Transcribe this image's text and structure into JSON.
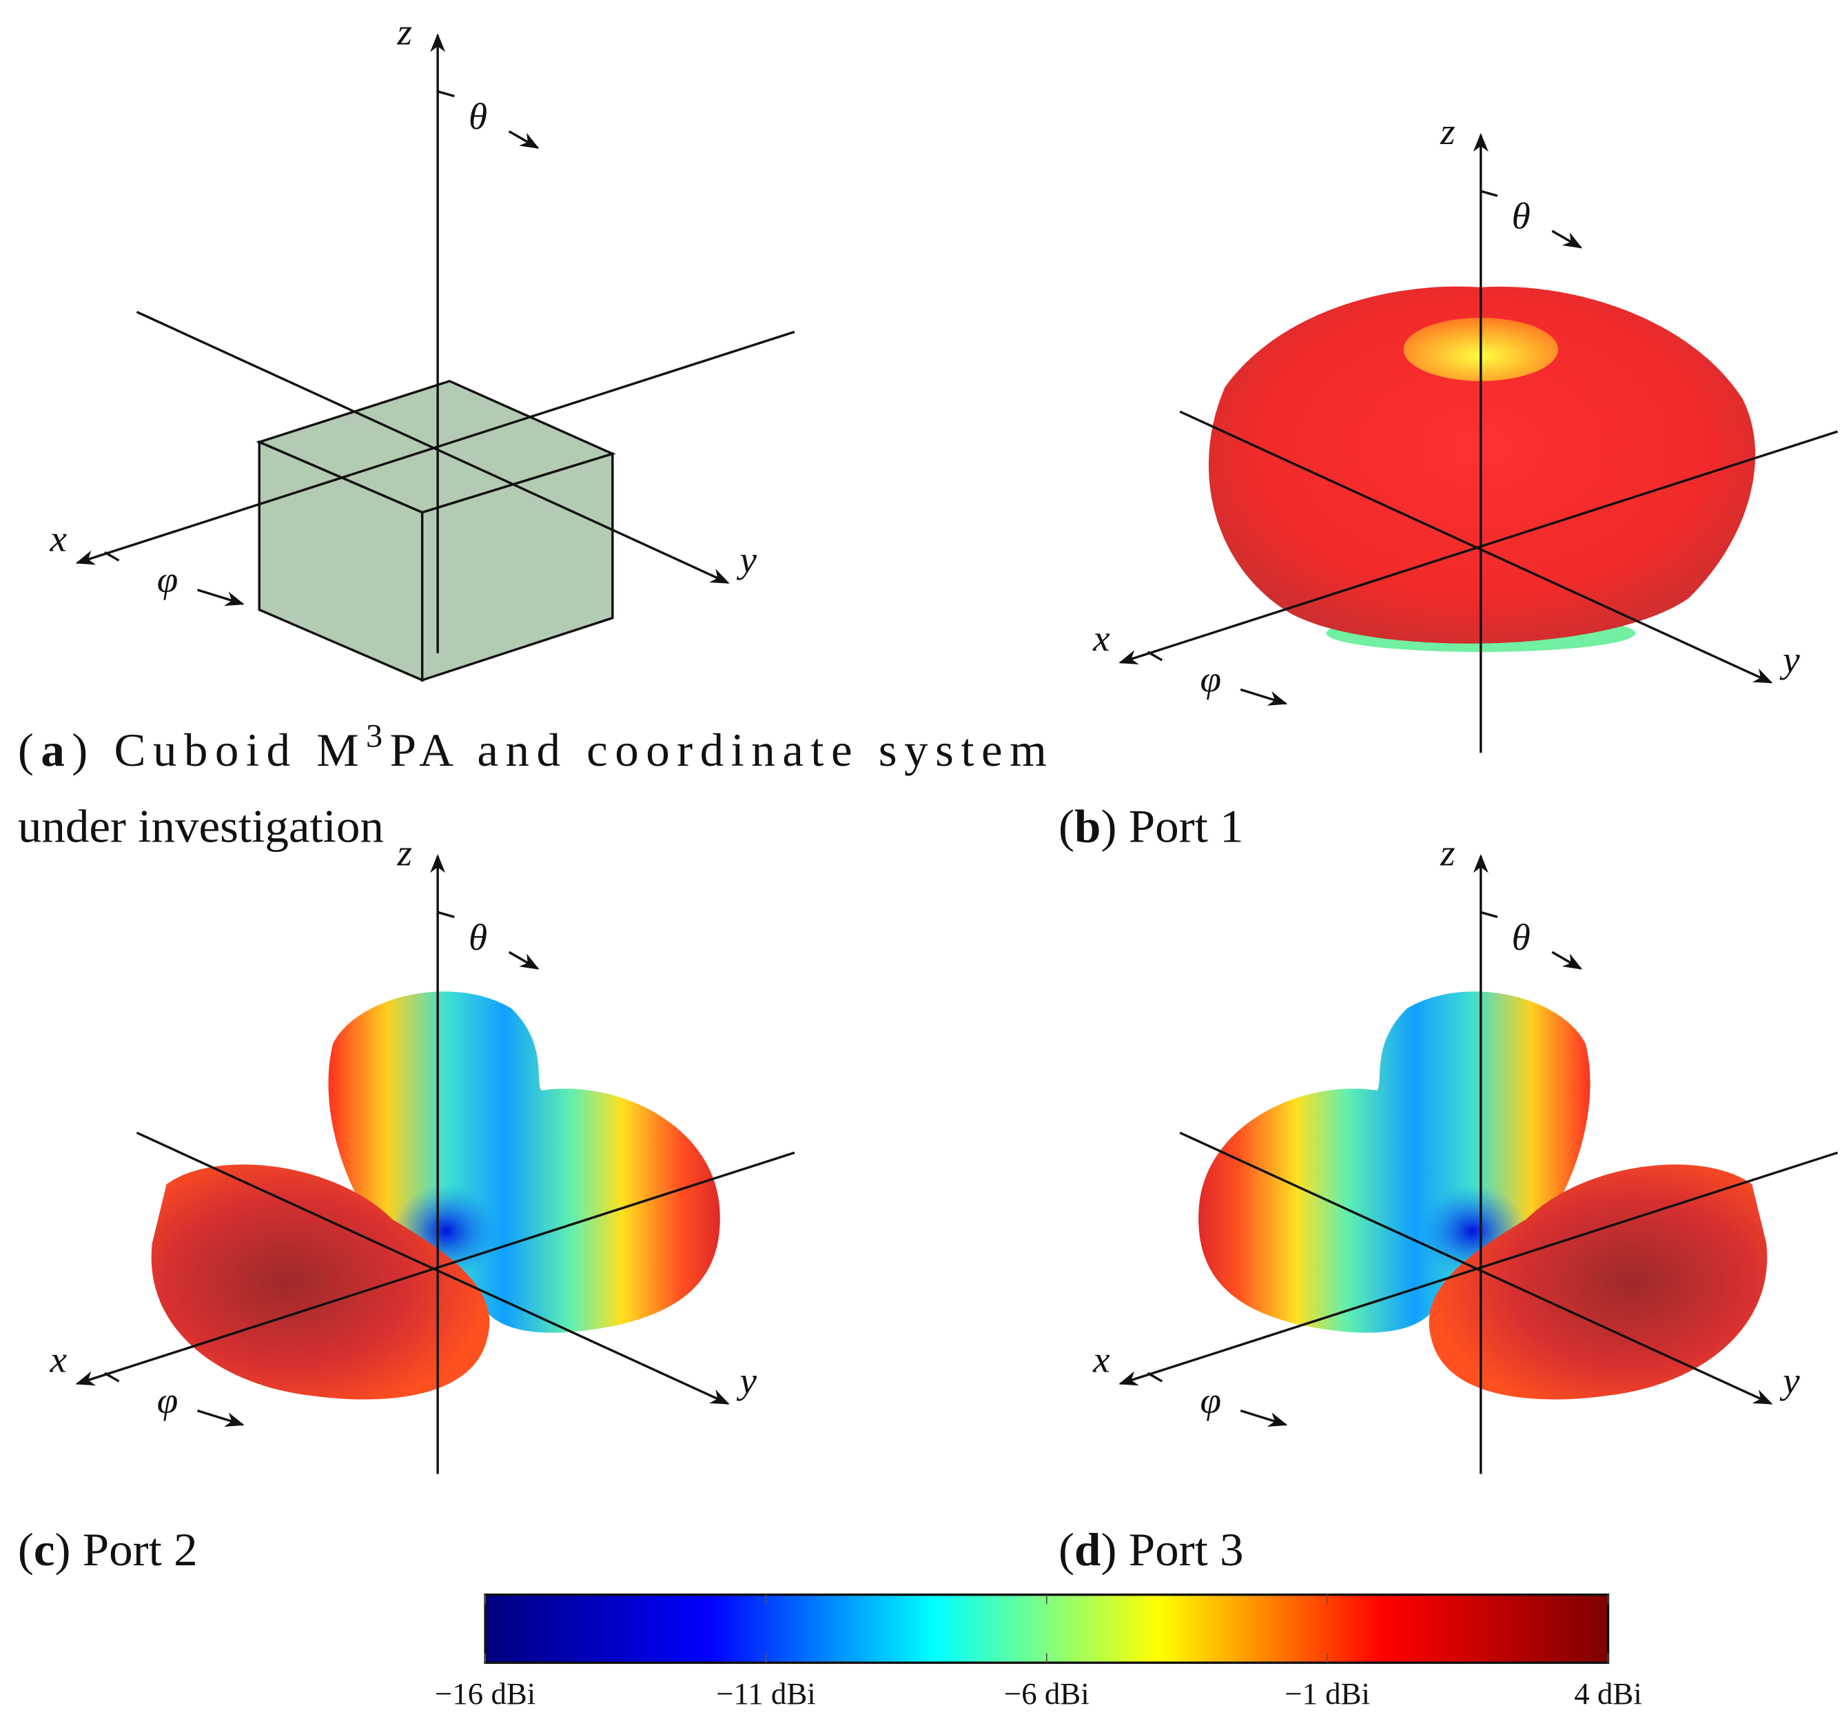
{
  "panels": [
    {
      "caption": [
        "(",
        "a",
        ") Cuboid M",
        "3",
        "PA and coordinate system",
        "under investigation"
      ]
    },
    {
      "caption": [
        "(",
        "b",
        ") Port 1"
      ]
    },
    {
      "caption": [
        "(",
        "c",
        ") Port 2"
      ]
    },
    {
      "caption": [
        "(",
        "d",
        ") Port 3"
      ]
    }
  ],
  "axis_labels": {
    "x": "x",
    "y": "y",
    "z": "z",
    "theta": "θ",
    "phi": "φ"
  },
  "colorbar": {
    "range": [
      -16,
      4
    ],
    "colors": [
      "#00007f",
      "#0000ff",
      "#00ffff",
      "#ffff00",
      "#ff0000",
      "#7f0000"
    ],
    "ticks": [
      {
        "value": -16,
        "label": "−16 dBi"
      },
      {
        "value": -11,
        "label": "−11 dBi"
      },
      {
        "value": -6,
        "label": "−6 dBi"
      },
      {
        "value": -1,
        "label": "−1 dBi"
      },
      {
        "value": 4,
        "label": "4 dBi"
      }
    ]
  }
}
